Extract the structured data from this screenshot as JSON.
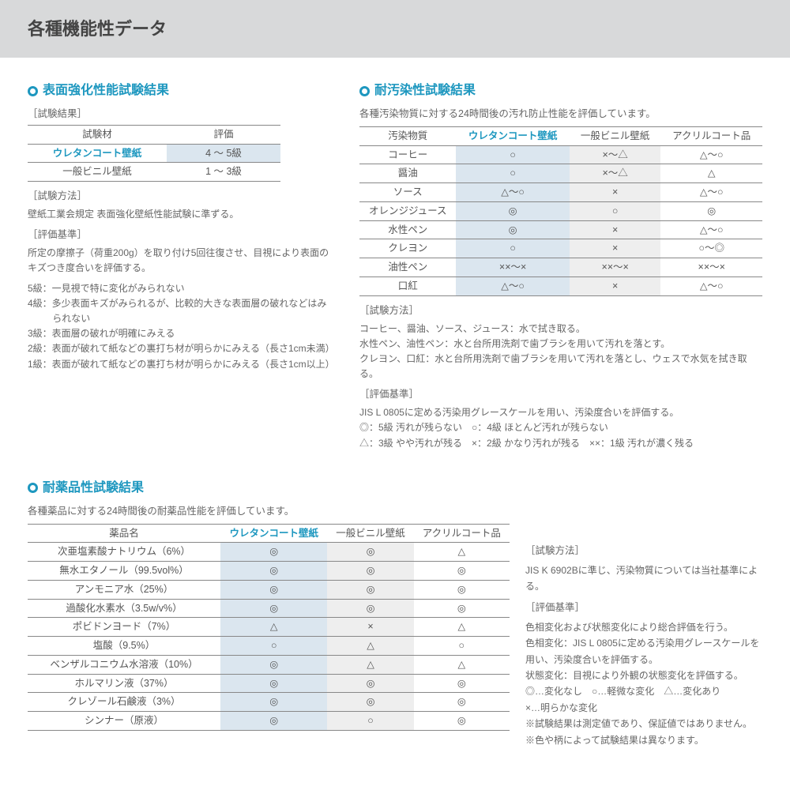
{
  "page_title": "各種機能性データ",
  "s1": {
    "title": "表面強化性能試験結果",
    "label_result": "［試験結果］",
    "headers": [
      "試験材",
      "評価"
    ],
    "rows": [
      {
        "name": "ウレタンコート壁紙",
        "val": "4 ～ 5級",
        "accent": true
      },
      {
        "name": "一般ビニル壁紙",
        "val": "1 ～ 3級",
        "accent": false
      }
    ],
    "label_method": "［試験方法］",
    "method_text": "壁紙工業会規定 表面強化壁紙性能試験に準ずる。",
    "label_criteria": "［評価基準］",
    "criteria_text": "所定の摩擦子（荷重200g）を取り付け5回往復させ、目視により表面のキズつき度合いを評価する。",
    "grades": [
      "5級：一見視で特に変化がみられない",
      "4級：多少表面キズがみられるが、比較的大きな表面層の破れなどはみられない",
      "3級：表面層の破れが明確にみえる",
      "2級：表面が破れて紙などの裏打ち材が明らかにみえる（長さ1cm未満）",
      "1級：表面が破れて紙などの裏打ち材が明らかにみえる（長さ1cm以上）"
    ]
  },
  "s2": {
    "title": "耐汚染性試験結果",
    "intro": "各種汚染物質に対する24時間後の汚れ防止性能を評価しています。",
    "headers": [
      "汚染物質",
      "ウレタンコート壁紙",
      "一般ビニル壁紙",
      "アクリルコート品"
    ],
    "rows": [
      [
        "コーヒー",
        "○",
        "×～△",
        "△～○"
      ],
      [
        "醤油",
        "○",
        "×～△",
        "△"
      ],
      [
        "ソース",
        "△～○",
        "×",
        "△～○"
      ],
      [
        "オレンジジュース",
        "◎",
        "○",
        "◎"
      ],
      [
        "水性ペン",
        "◎",
        "×",
        "△～○"
      ],
      [
        "クレヨン",
        "○",
        "×",
        "○～◎"
      ],
      [
        "油性ペン",
        "××～×",
        "××～×",
        "××～×"
      ],
      [
        "口紅",
        "△～○",
        "×",
        "△～○"
      ]
    ],
    "label_method": "［試験方法］",
    "method_lines": [
      "コーヒー、醤油、ソース、ジュース：水で拭き取る。",
      "水性ペン、油性ペン：水と台所用洗剤で歯ブラシを用いて汚れを落とす。",
      "クレヨン、口紅：水と台所用洗剤で歯ブラシを用いて汚れを落とし、ウェスで水気を拭き取る。"
    ],
    "label_criteria": "［評価基準］",
    "criteria_lines": [
      "JIS L 0805に定める汚染用グレースケールを用い、汚染度合いを評価する。",
      "◎：5級 汚れが残らない　○：4級 ほとんど汚れが残らない",
      "△：3級 やや汚れが残る　×：2級 かなり汚れが残る　××：1級 汚れが濃く残る"
    ]
  },
  "s3": {
    "title": "耐薬品性試験結果",
    "intro": "各種薬品に対する24時間後の耐薬品性能を評価しています。",
    "headers": [
      "薬品名",
      "ウレタンコート壁紙",
      "一般ビニル壁紙",
      "アクリルコート品"
    ],
    "rows": [
      [
        "次亜塩素酸ナトリウム（6%）",
        "◎",
        "◎",
        "△"
      ],
      [
        "無水エタノール（99.5vol%）",
        "◎",
        "◎",
        "◎"
      ],
      [
        "アンモニア水（25%）",
        "◎",
        "◎",
        "◎"
      ],
      [
        "過酸化水素水（3.5w/v%）",
        "◎",
        "◎",
        "◎"
      ],
      [
        "ポビドンヨード（7%）",
        "△",
        "×",
        "△"
      ],
      [
        "塩酸（9.5%）",
        "○",
        "△",
        "○"
      ],
      [
        "ベンザルコニウム水溶液（10%）",
        "◎",
        "△",
        "△"
      ],
      [
        "ホルマリン液（37%）",
        "◎",
        "◎",
        "◎"
      ],
      [
        "クレゾール石鹸液（3%）",
        "◎",
        "◎",
        "◎"
      ],
      [
        "シンナー（原液）",
        "◎",
        "○",
        "◎"
      ]
    ],
    "label_method": "［試験方法］",
    "method_text": "JIS K 6902Bに準じ、汚染物質については当社基準による。",
    "label_criteria": "［評価基準］",
    "criteria_lines": [
      "色相変化および状態変化により総合評価を行う。",
      "色相変化：JIS L 0805に定める汚染用グレースケールを用い、汚染度合いを評価する。",
      "状態変化：目視により外観の状態変化を評価する。",
      "◎…変化なし　○…軽微な変化　△…変化あり",
      "×…明らかな変化",
      "※試験結果は測定値であり、保証値ではありません。",
      "※色や柄によって試験結果は異なります。"
    ]
  }
}
